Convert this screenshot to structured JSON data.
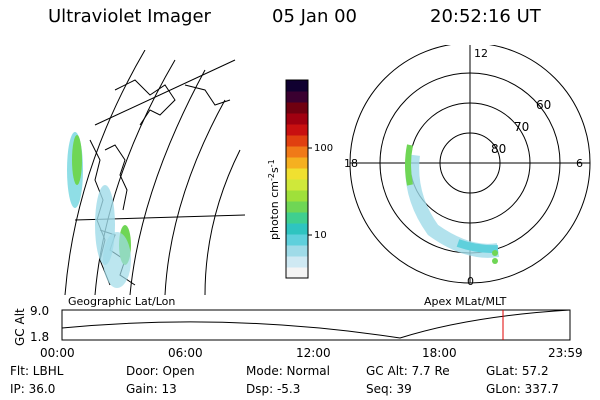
{
  "header": {
    "instrument": "Ultraviolet Imager",
    "date": "05 Jan 00",
    "time": "20:52:16 UT"
  },
  "geo_panel": {
    "label": "Geographic Lat/Lon"
  },
  "polar_panel": {
    "label": "Apex MLat/MLT",
    "mlt_labels": [
      "12",
      "18",
      "6",
      "0"
    ],
    "lat_labels": [
      "60",
      "70",
      "80"
    ]
  },
  "colorbar": {
    "unit_label": "photon cm",
    "unit_exp1": "-2",
    "unit_mid": "s",
    "unit_exp2": "-1",
    "ticks": [
      "100",
      "10"
    ],
    "colors": [
      "#f4f4f4",
      "#cfe9f3",
      "#9fdbe8",
      "#5fd0dc",
      "#2fc4c0",
      "#3fcf8f",
      "#6fd655",
      "#9fe03a",
      "#cfe83a",
      "#f0e030",
      "#f5b020",
      "#f07a18",
      "#e04010",
      "#c81010",
      "#a00010",
      "#700010",
      "#3a0030",
      "#100030"
    ]
  },
  "altitude_plot": {
    "ylabel": "GC Alt",
    "yticks": [
      "9.0",
      "1.8"
    ],
    "time_ticks": [
      "00:00",
      "06:00",
      "12:00",
      "18:00",
      "23:59"
    ],
    "marker_color": "#e00000"
  },
  "info": {
    "flt": "Flt: LBHL",
    "door": "Door: Open",
    "mode": "Mode: Normal",
    "gcalt": "GC Alt: 7.7 Re",
    "glat": "GLat:  57.2",
    "ip": "IP: 36.0",
    "gain": "Gain: 13",
    "dsp": "Dsp:   -5.3",
    "seq": "Seq: 39",
    "glon": "GLon: 337.7"
  }
}
